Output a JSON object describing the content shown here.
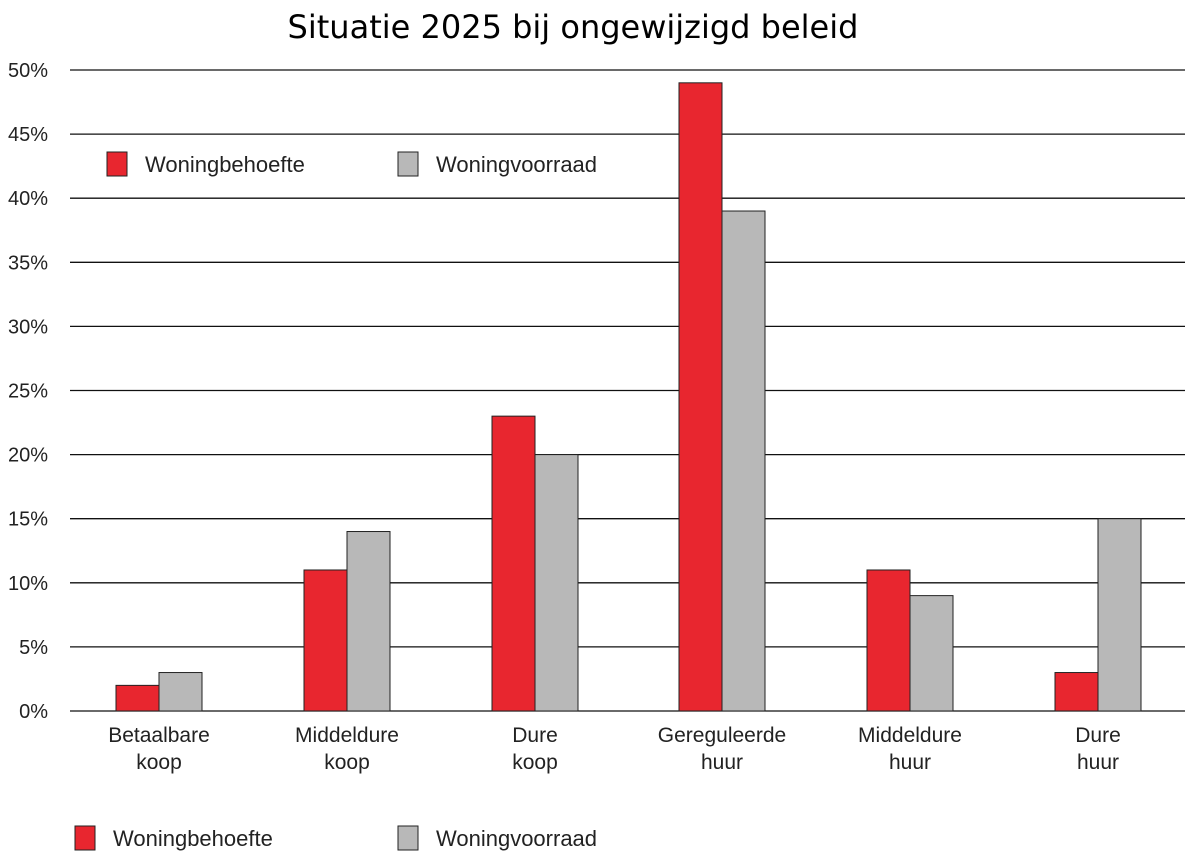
{
  "chart_data": {
    "type": "bar",
    "title": "Situatie 2025 bij ongewijzigd beleid",
    "xlabel": "",
    "ylabel": "",
    "ylim": [
      0,
      50
    ],
    "ytick_step": 5,
    "yticks": [
      "0%",
      "5%",
      "10%",
      "15%",
      "20%",
      "25%",
      "30%",
      "35%",
      "40%",
      "45%",
      "50%"
    ],
    "grid": true,
    "legend_placement": "top-left inside plot; repeated below chart",
    "categories": [
      [
        "Betaalbare",
        "koop"
      ],
      [
        "Middeldure",
        "koop"
      ],
      [
        "Dure",
        "koop"
      ],
      [
        "Gereguleerde",
        "huur"
      ],
      [
        "Middeldure",
        "huur"
      ],
      [
        "Dure",
        "huur"
      ]
    ],
    "series": [
      {
        "name": "Woningbehoefte",
        "color": "#e8262f",
        "values": [
          2,
          11,
          23,
          49,
          11,
          3
        ]
      },
      {
        "name": "Woningvoorraad",
        "color": "#b8b8b8",
        "values": [
          3,
          14,
          20,
          39,
          9,
          15
        ]
      }
    ]
  }
}
